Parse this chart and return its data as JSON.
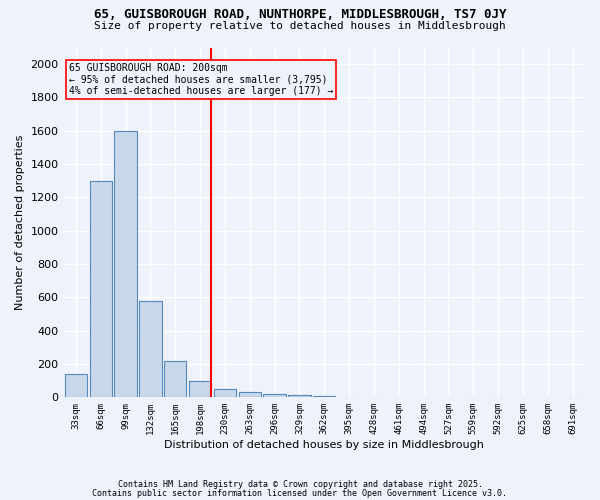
{
  "title_line1": "65, GUISBOROUGH ROAD, NUNTHORPE, MIDDLESBROUGH, TS7 0JY",
  "title_line2": "Size of property relative to detached houses in Middlesbrough",
  "xlabel": "Distribution of detached houses by size in Middlesbrough",
  "ylabel": "Number of detached properties",
  "bar_labels": [
    "33sqm",
    "66sqm",
    "99sqm",
    "132sqm",
    "165sqm",
    "198sqm",
    "230sqm",
    "263sqm",
    "296sqm",
    "329sqm",
    "362sqm",
    "395sqm",
    "428sqm",
    "461sqm",
    "494sqm",
    "527sqm",
    "559sqm",
    "592sqm",
    "625sqm",
    "658sqm",
    "691sqm"
  ],
  "bar_values": [
    140,
    1300,
    1600,
    580,
    220,
    100,
    50,
    30,
    20,
    15,
    10,
    5,
    3,
    2,
    1,
    1,
    1,
    0,
    0,
    0,
    0
  ],
  "bar_color": "#c8d8ea",
  "bar_edge_color": "#5588bb",
  "ylim": [
    0,
    2100
  ],
  "yticks": [
    0,
    200,
    400,
    600,
    800,
    1000,
    1200,
    1400,
    1600,
    1800,
    2000
  ],
  "vline_color": "red",
  "annotation_text": "65 GUISBOROUGH ROAD: 200sqm\n← 95% of detached houses are smaller (3,795)\n4% of semi-detached houses are larger (177) →",
  "annotation_box_color": "red",
  "background_color": "#eef2fb",
  "grid_color": "#ffffff",
  "footnote1": "Contains HM Land Registry data © Crown copyright and database right 2025.",
  "footnote2": "Contains public sector information licensed under the Open Government Licence v3.0."
}
